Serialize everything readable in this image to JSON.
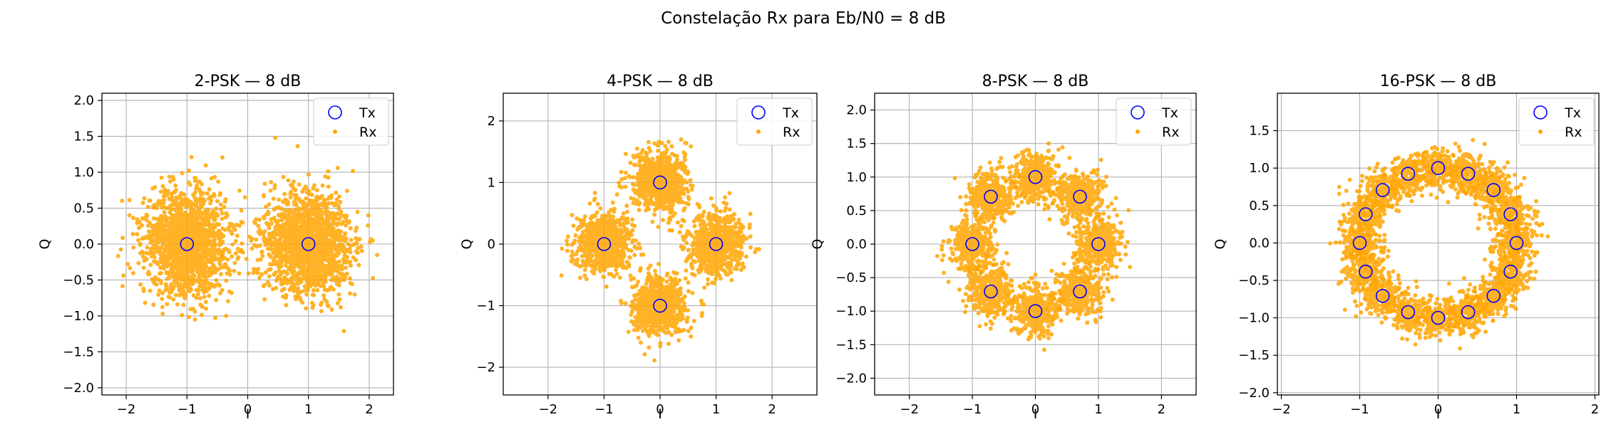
{
  "figure": {
    "suptitle": "Constelação Rx para Eb/N0 = 8 dB"
  },
  "colors": {
    "tx": "#0000ff",
    "rx": "#ffa500",
    "grid": "#b0b0b0",
    "axes": "#000000"
  },
  "chart_data": [
    {
      "type": "scatter",
      "title": "2-PSK — 8 dB",
      "xlabel": "I",
      "ylabel": "Q",
      "M": 2,
      "xlim": [
        -2.4,
        2.4
      ],
      "ylim": [
        -2.1,
        2.1
      ],
      "xticks": [
        -2,
        -1,
        0,
        1,
        2
      ],
      "yticks": [
        -2.0,
        -1.5,
        -1.0,
        -0.5,
        0.0,
        0.5,
        1.0,
        1.5,
        2.0
      ],
      "ytick_labels": [
        "−2.0",
        "−1.5",
        "−1.0",
        "−0.5",
        "0.0",
        "0.5",
        "1.0",
        "1.5",
        "2.0"
      ],
      "xtick_labels": [
        "−2",
        "−1",
        "0",
        "1",
        "2"
      ],
      "grid": true,
      "legend": "top-right",
      "series": [
        {
          "name": "Tx",
          "marker": "open-circle",
          "points": [
            [
              1,
              0
            ],
            [
              -1,
              0
            ]
          ]
        },
        {
          "name": "Rx",
          "marker": "dot",
          "cloud_spread": 1.2
        }
      ]
    },
    {
      "type": "scatter",
      "title": "4-PSK — 8 dB",
      "xlabel": "I",
      "ylabel": "Q",
      "M": 4,
      "xlim": [
        -2.8,
        2.8
      ],
      "ylim": [
        -2.45,
        2.45
      ],
      "xticks": [
        -2,
        -1,
        0,
        1,
        2
      ],
      "yticks": [
        -2,
        -1,
        0,
        1,
        2
      ],
      "ytick_labels": [
        "−2",
        "−1",
        "0",
        "1",
        "2"
      ],
      "xtick_labels": [
        "−2",
        "−1",
        "0",
        "1",
        "2"
      ],
      "grid": true,
      "legend": "top-right",
      "series": [
        {
          "name": "Tx",
          "marker": "open-circle",
          "points": [
            [
              1,
              0
            ],
            [
              0,
              1
            ],
            [
              -1,
              0
            ],
            [
              0,
              -1
            ]
          ]
        },
        {
          "name": "Rx",
          "marker": "dot",
          "cloud_spread": 0.8
        }
      ]
    },
    {
      "type": "scatter",
      "title": "8-PSK — 8 dB",
      "xlabel": "I",
      "ylabel": "Q",
      "M": 8,
      "xlim": [
        -2.55,
        2.55
      ],
      "ylim": [
        -2.25,
        2.25
      ],
      "xticks": [
        -2,
        -1,
        0,
        1,
        2
      ],
      "yticks": [
        -2.0,
        -1.5,
        -1.0,
        -0.5,
        0.0,
        0.5,
        1.0,
        1.5,
        2.0
      ],
      "ytick_labels": [
        "−2.0",
        "−1.5",
        "−1.0",
        "−0.5",
        "0.0",
        "0.5",
        "1.0",
        "1.5",
        "2.0"
      ],
      "xtick_labels": [
        "−2",
        "−1",
        "0",
        "1",
        "2"
      ],
      "grid": true,
      "legend": "top-right",
      "series": [
        {
          "name": "Tx",
          "marker": "open-circle",
          "points": [
            [
              1,
              0
            ],
            [
              0.707,
              0.707
            ],
            [
              0,
              1
            ],
            [
              -0.707,
              0.707
            ],
            [
              -1,
              0
            ],
            [
              -0.707,
              -0.707
            ],
            [
              0,
              -1
            ],
            [
              0.707,
              -0.707
            ]
          ]
        },
        {
          "name": "Rx",
          "marker": "dot",
          "cloud_spread": 0.6
        }
      ]
    },
    {
      "type": "scatter",
      "title": "16-PSK — 8 dB",
      "xlabel": "I",
      "ylabel": "Q",
      "M": 16,
      "xlim": [
        -2.05,
        2.05
      ],
      "ylim": [
        -2.03,
        2.0
      ],
      "xticks": [
        -2,
        -1,
        0,
        1,
        2
      ],
      "yticks": [
        -2.0,
        -1.5,
        -1.0,
        -0.5,
        0.0,
        0.5,
        1.0,
        1.5
      ],
      "ytick_labels": [
        "−2.0",
        "−1.5",
        "−1.0",
        "−0.5",
        "0.0",
        "0.5",
        "1.0",
        "1.5"
      ],
      "xtick_labels": [
        "−2",
        "−1",
        "0",
        "1",
        "2"
      ],
      "grid": true,
      "legend": "top-right",
      "series": [
        {
          "name": "Tx",
          "marker": "open-circle",
          "points": [
            [
              1,
              0
            ],
            [
              0.924,
              0.383
            ],
            [
              0.707,
              0.707
            ],
            [
              0.383,
              0.924
            ],
            [
              0,
              1
            ],
            [
              -0.383,
              0.924
            ],
            [
              -0.707,
              0.707
            ],
            [
              -0.924,
              0.383
            ],
            [
              -1,
              0
            ],
            [
              -0.924,
              -0.383
            ],
            [
              -0.707,
              -0.707
            ],
            [
              -0.383,
              -0.924
            ],
            [
              0,
              -1
            ],
            [
              0.383,
              -0.924
            ],
            [
              0.707,
              -0.707
            ],
            [
              0.924,
              -0.383
            ]
          ]
        },
        {
          "name": "Rx",
          "marker": "dot",
          "cloud_spread": 0.45
        }
      ]
    }
  ]
}
